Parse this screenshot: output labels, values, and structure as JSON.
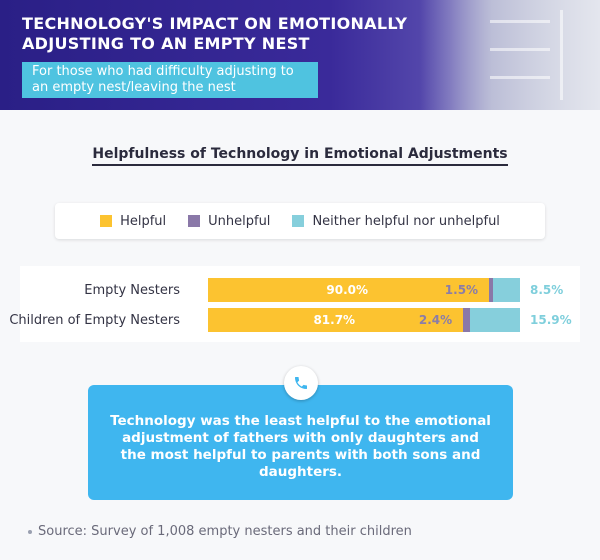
{
  "header": {
    "title": "TECHNOLOGY'S IMPACT ON EMOTIONALLY ADJUSTING TO AN EMPTY NEST",
    "subtitle": "For those who had difficulty adjusting to an empty nest/leaving the nest"
  },
  "chart_data": {
    "type": "bar",
    "orientation": "horizontal",
    "stacked": true,
    "title": "Helpfulness of Technology in Emotional Adjustments",
    "categories": [
      "Empty Nesters",
      "Children of Empty Nesters"
    ],
    "series": [
      {
        "name": "Helpful",
        "values": [
          90.0,
          81.7
        ],
        "labels": [
          "90.0%",
          "81.7%"
        ],
        "color": "#fcc330"
      },
      {
        "name": "Unhelpful",
        "values": [
          1.5,
          2.4
        ],
        "labels": [
          "1.5%",
          "2.4%"
        ],
        "color": "#8a78a8"
      },
      {
        "name": "Neither helpful nor unhelpful",
        "values": [
          8.5,
          15.9
        ],
        "labels": [
          "8.5%",
          "15.9%"
        ],
        "color": "#86cfdc"
      }
    ],
    "xlim": [
      0,
      100
    ],
    "legend_position": "top",
    "grid": false
  },
  "callout": {
    "icon": "phone-icon",
    "text": "Technology was the least helpful to the emotional adjustment of fathers with only daughters and the most helpful to parents with both sons and daughters."
  },
  "source": "Source: Survey of 1,008 empty nesters and their children"
}
